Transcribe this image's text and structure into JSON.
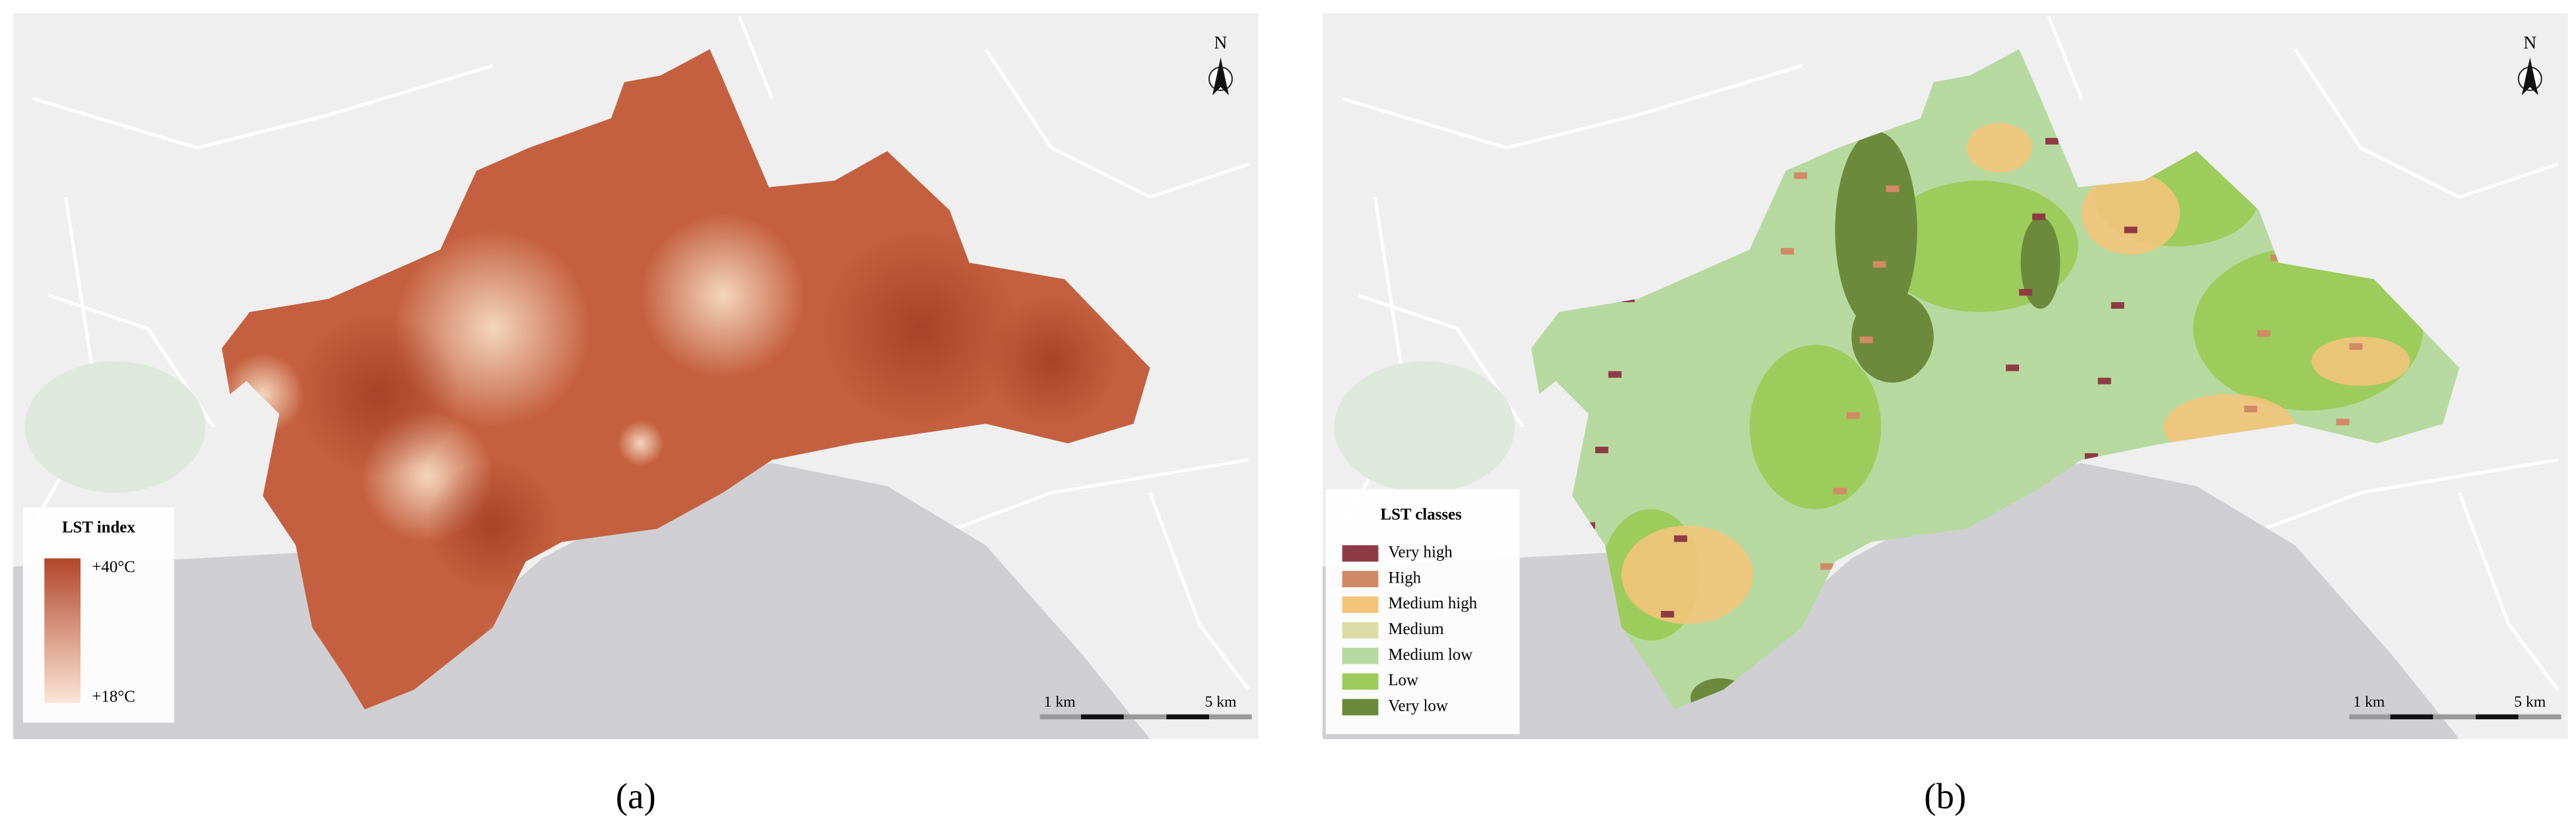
{
  "panels": [
    {
      "caption": "(a)",
      "north": "N",
      "scale": [
        "1 km",
        "5 km"
      ],
      "legend": {
        "title": "LST index",
        "max_label": "+40°C",
        "min_label": "+18°C",
        "max_color": "#b2462b",
        "min_color": "#fbe6d6"
      }
    },
    {
      "caption": "(b)",
      "north": "N",
      "scale": [
        "1 km",
        "5 km"
      ],
      "legend": {
        "title": "LST classes",
        "items": [
          {
            "label": "Very high",
            "color": "#8e3b44"
          },
          {
            "label": "High",
            "color": "#d08a66"
          },
          {
            "label": "Medium high",
            "color": "#f3c47a"
          },
          {
            "label": "Medium",
            "color": "#dcdca6"
          },
          {
            "label": "Medium low",
            "color": "#b6d9a0"
          },
          {
            "label": "Low",
            "color": "#9ccc5b"
          },
          {
            "label": "Very low",
            "color": "#6b8a3c"
          }
        ]
      }
    }
  ]
}
